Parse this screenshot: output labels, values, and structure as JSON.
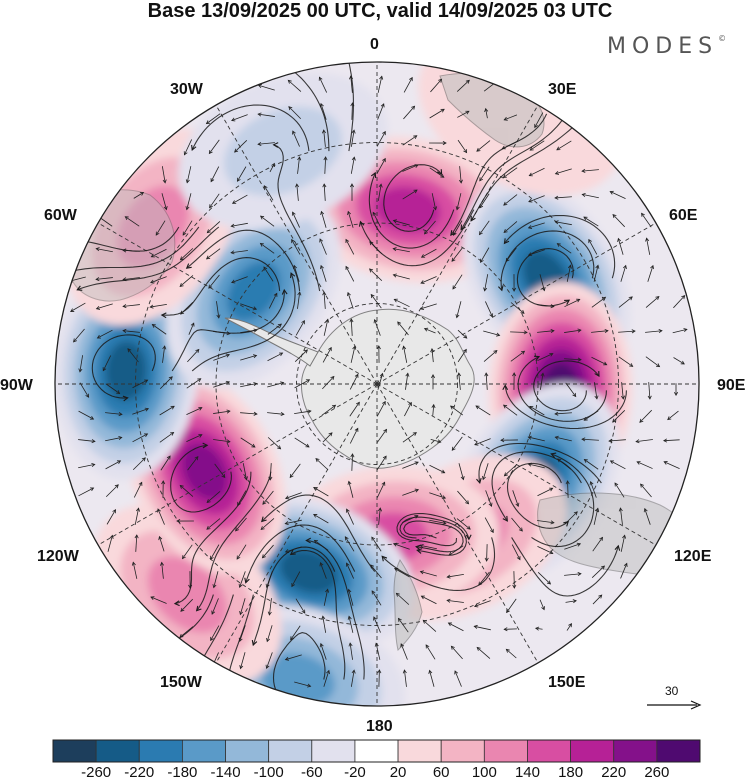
{
  "header": {
    "title": "Base 13/09/2025 00 UTC, valid 14/09/2025 03 UTC",
    "brand": "MODES",
    "brand_mark": "©"
  },
  "map": {
    "projection": "south-polar-stereographic",
    "longitude_labels": {
      "top": "0",
      "upper_left": "30W",
      "upper_right": "30E",
      "mid_upper_left": "60W",
      "mid_upper_right": "60E",
      "left": "90W",
      "right": "90E",
      "lower_left": "120W",
      "lower_right": "120E",
      "bottom_left": "150W",
      "bottom_right": "150E",
      "bottom": "180"
    },
    "reference_vector_label": "30"
  },
  "colorbar": {
    "ticks": [
      "-260",
      "-220",
      "-180",
      "-140",
      "-100",
      "-60",
      "-20",
      "20",
      "60",
      "100",
      "140",
      "180",
      "220",
      "260"
    ],
    "colors": [
      "#1d3e5c",
      "#155b87",
      "#2b7bb1",
      "#5a9ac8",
      "#93b8d9",
      "#c3d0e6",
      "#e2e1ee",
      "#ffffff",
      "#f9d9dc",
      "#f3b4c4",
      "#ea86b0",
      "#d84ea2",
      "#b62196",
      "#84118a",
      "#4f0a70"
    ]
  },
  "chart_data": {
    "type": "map",
    "title": "Base 13/09/2025 00 UTC, valid 14/09/2025 03 UTC",
    "variable_range": [
      -260,
      260
    ],
    "contour_levels": [
      -260,
      -220,
      -180,
      -140,
      -100,
      -60,
      -20,
      20,
      60,
      100,
      140,
      180,
      220,
      260
    ],
    "anomalies": [
      {
        "name": "positive-10E",
        "lon": 10,
        "r": 0.55,
        "value": 215
      },
      {
        "name": "negative-60E",
        "lon": 58,
        "r": 0.62,
        "value": -245
      },
      {
        "name": "positive-90E",
        "lon": 92,
        "r": 0.57,
        "value": 265
      },
      {
        "name": "negative-125E",
        "lon": 122,
        "r": 0.58,
        "value": -250
      },
      {
        "name": "positive-150E",
        "lon": 150,
        "r": 0.55,
        "value": 120
      },
      {
        "name": "positive-180",
        "lon": 175,
        "r": 0.48,
        "value": 150
      },
      {
        "name": "negative-160W",
        "lon": -160,
        "r": 0.62,
        "value": -245
      },
      {
        "name": "negative-165W-outer",
        "lon": -165,
        "r": 0.95,
        "value": -160
      },
      {
        "name": "positive-145W",
        "lon": -138,
        "r": 0.88,
        "value": 110
      },
      {
        "name": "positive-120W",
        "lon": -117,
        "r": 0.6,
        "value": 230
      },
      {
        "name": "negative-90W",
        "lon": -87,
        "r": 0.78,
        "value": -220
      },
      {
        "name": "negative-55W",
        "lon": -53,
        "r": 0.48,
        "value": -190
      },
      {
        "name": "positive-55W",
        "lon": -55,
        "r": 0.85,
        "value": 110
      },
      {
        "name": "negative-25W",
        "lon": -22,
        "r": 0.78,
        "value": -90
      },
      {
        "name": "positive-20E-outer",
        "lon": 28,
        "r": 0.95,
        "value": 50
      }
    ]
  }
}
